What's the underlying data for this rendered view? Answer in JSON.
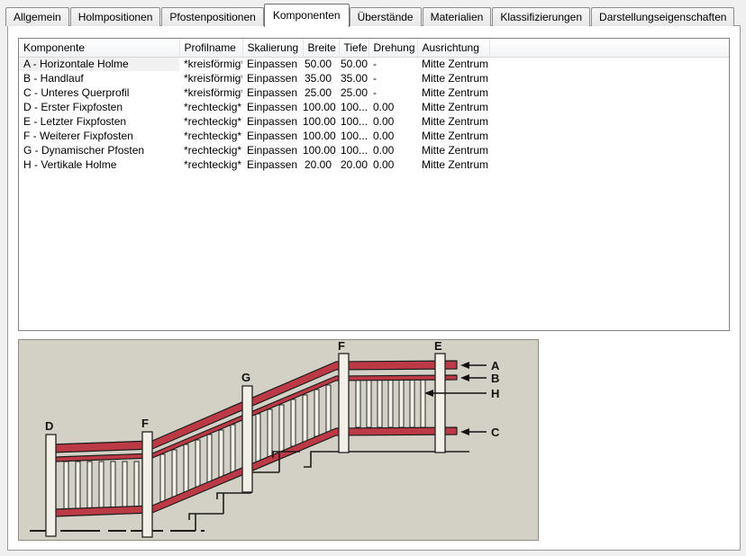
{
  "tabs": {
    "items": [
      {
        "id": "allgemein",
        "label": "Allgemein",
        "active": false
      },
      {
        "id": "holmpositionen",
        "label": "Holmpositionen",
        "active": false
      },
      {
        "id": "pfostenpositionen",
        "label": "Pfostenpositionen",
        "active": false
      },
      {
        "id": "komponenten",
        "label": "Komponenten",
        "active": true
      },
      {
        "id": "ueberstaende",
        "label": "Überstände",
        "active": false
      },
      {
        "id": "materialien",
        "label": "Materialien",
        "active": false
      },
      {
        "id": "klassifizierungen",
        "label": "Klassifizierungen",
        "active": false
      },
      {
        "id": "darstellungseigenschaften",
        "label": "Darstellungseigenschaften",
        "active": false
      }
    ]
  },
  "table": {
    "columns": [
      "Komponente",
      "Profilname",
      "Skalierung",
      "Breite",
      "Tiefe",
      "Drehung",
      "Ausrichtung"
    ],
    "rows": [
      [
        "A - Horizontale Holme",
        "*kreisförmig*",
        "Einpassen",
        "50.00",
        "50.00",
        "-",
        "Mitte Zentrum"
      ],
      [
        "B - Handlauf",
        "*kreisförmig*",
        "Einpassen",
        "35.00",
        "35.00",
        "-",
        "Mitte Zentrum"
      ],
      [
        "C - Unteres Querprofil",
        "*kreisförmig*",
        "Einpassen",
        "25.00",
        "25.00",
        "-",
        "Mitte Zentrum"
      ],
      [
        "D - Erster Fixpfosten",
        "*rechteckig*",
        "Einpassen",
        "100.00",
        "100...",
        "0.00",
        "Mitte Zentrum"
      ],
      [
        "E - Letzter Fixpfosten",
        "*rechteckig*",
        "Einpassen",
        "100.00",
        "100...",
        "0.00",
        "Mitte Zentrum"
      ],
      [
        "F - Weiterer Fixpfosten",
        "*rechteckig*",
        "Einpassen",
        "100.00",
        "100...",
        "0.00",
        "Mitte Zentrum"
      ],
      [
        "G - Dynamischer Pfosten",
        "*rechteckig*",
        "Einpassen",
        "100.00",
        "100...",
        "0.00",
        "Mitte Zentrum"
      ],
      [
        "H - Vertikale Holme",
        "*rechteckig*",
        "Einpassen",
        "20.00",
        "20.00",
        "0.00",
        "Mitte Zentrum"
      ]
    ],
    "selected_row": 0
  },
  "illustration": {
    "type": "railing-side-view-diagram",
    "post_labels": [
      "D",
      "F",
      "G",
      "F",
      "E"
    ],
    "callout_labels": [
      "A",
      "B",
      "H",
      "C"
    ],
    "colors": {
      "background": "#d3d1c6",
      "rail_red": "#bc3a46",
      "post_fill": "#f3f0e7",
      "line": "#1c1c1c"
    }
  }
}
